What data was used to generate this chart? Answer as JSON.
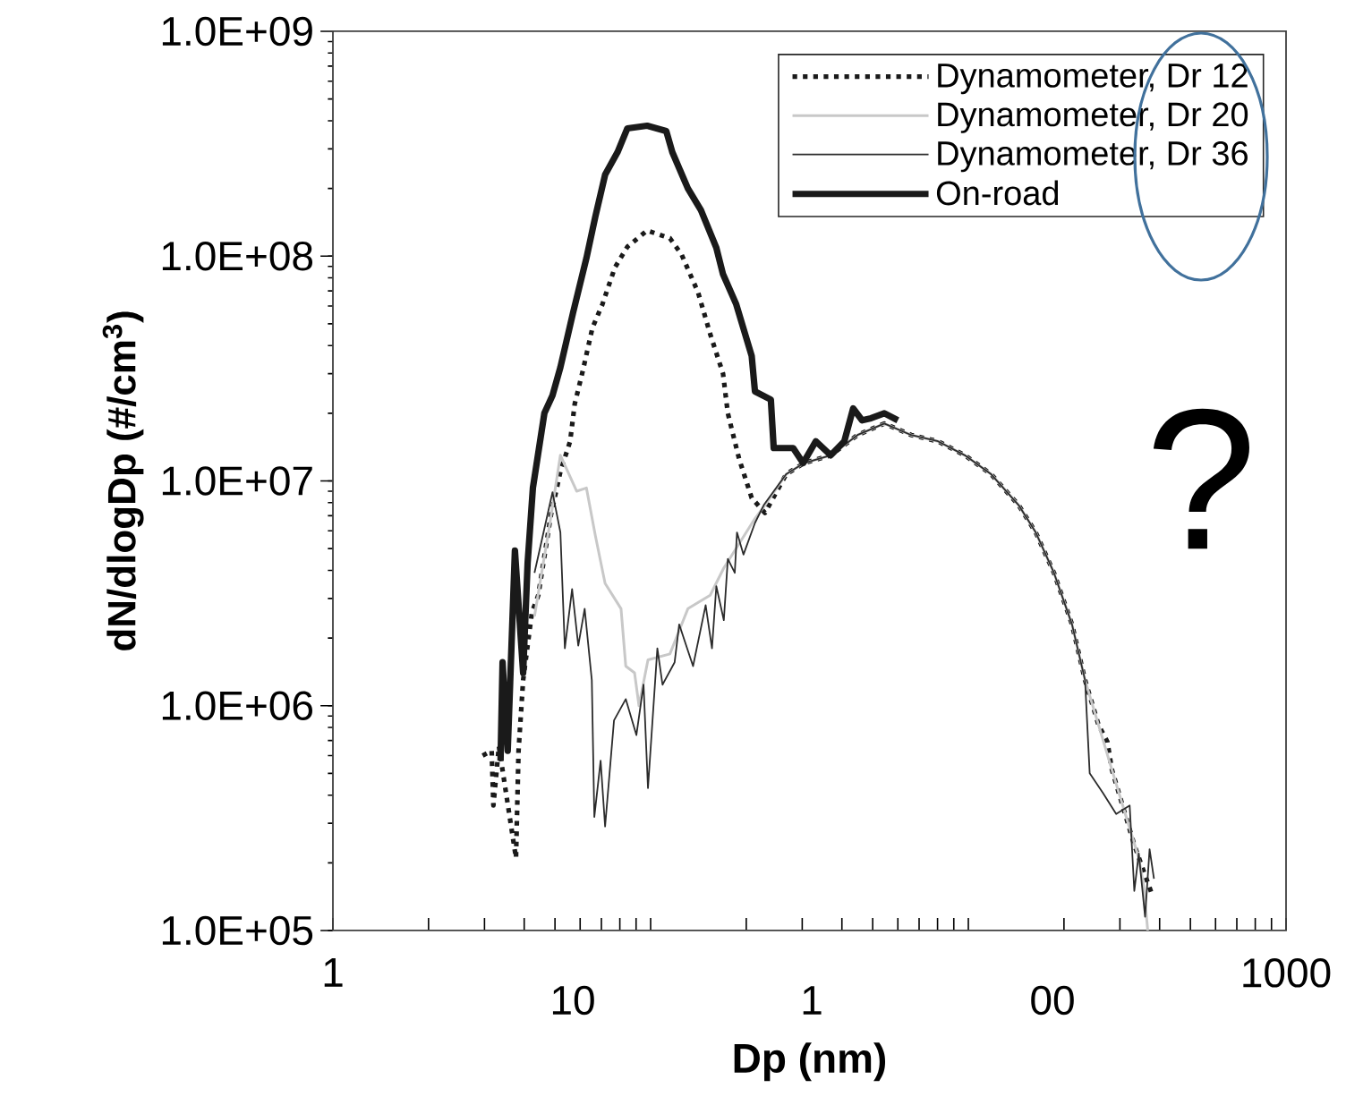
{
  "chart_data": {
    "type": "line",
    "log": "xy",
    "legend": "top right",
    "xlabel": "Dp (nm)",
    "ylabel": "dN/dlogDp (#/cm$^{3}$)",
    "xlim": [
      1,
      1000
    ],
    "ylim": [
      100000,
      1000000000
    ],
    "xticks": [
      {
        "value": 1,
        "label": "1"
      },
      {
        "value": 2,
        "label": null
      },
      {
        "value": 3,
        "label": null
      },
      {
        "value": 4,
        "label": null
      },
      {
        "value": 5,
        "label": null
      },
      {
        "value": 6,
        "label": null
      },
      {
        "value": 7,
        "label": null
      },
      {
        "value": 8,
        "label": null
      },
      {
        "value": 9,
        "label": null
      },
      {
        "value": 10,
        "label": null
      },
      {
        "value": 20,
        "label": null
      },
      {
        "value": 30,
        "label": null
      },
      {
        "value": 40,
        "label": null
      },
      {
        "value": 50,
        "label": null
      },
      {
        "value": 60,
        "label": null
      },
      {
        "value": 70,
        "label": null
      },
      {
        "value": 80,
        "label": null
      },
      {
        "value": 90,
        "label": null
      },
      {
        "value": 100,
        "label": null
      },
      {
        "value": 200,
        "label": null
      },
      {
        "value": 300,
        "label": null
      },
      {
        "value": 400,
        "label": null
      },
      {
        "value": 500,
        "label": null
      },
      {
        "value": 600,
        "label": null
      },
      {
        "value": 700,
        "label": null
      },
      {
        "value": 800,
        "label": null
      },
      {
        "value": 900,
        "label": null
      },
      {
        "value": 1000,
        "label": "1000"
      }
    ],
    "yticks": [
      {
        "value": 100000,
        "label": "1.0E+05"
      },
      {
        "value": 1000000,
        "label": "1.0E+06"
      },
      {
        "value": 10000000,
        "label": "1.0E+07"
      },
      {
        "value": 100000000,
        "label": "1.0E+08"
      },
      {
        "value": 1000000000,
        "label": "1.0E+09"
      }
    ],
    "annotations": [
      "?",
      "10",
      "1",
      "00"
    ],
    "series": [
      {
        "name": "Dynamometer, Dr 12",
        "color": "#1a1a1a",
        "line_style": "dotted",
        "x": [
          2.96,
          3.16,
          3.2,
          3.33,
          3.77,
          3.84,
          3.97,
          4.23,
          4.43,
          4.85,
          5.2,
          5.58,
          5.77,
          6.12,
          6.56,
          7.05,
          7.72,
          8.45,
          9.75,
          11.5,
          12.5,
          14.1,
          15.4,
          16.9,
          17.5,
          19.0,
          20.8,
          22.9,
          26.7,
          30.4,
          36.9,
          44.8,
          54.4,
          66.1,
          80.3,
          97.5,
          118,
          144,
          163,
          186,
          212,
          233,
          257,
          274,
          283,
          333,
          379
        ],
        "values": [
          600000,
          630000,
          360000,
          660000,
          210000,
          630000,
          1300000,
          2600000,
          3100000,
          7000000,
          11000000,
          15000000,
          22000000,
          31000000,
          48000000,
          61000000,
          89000000,
          110000000,
          130000000,
          120000000,
          102000000,
          69000000,
          45000000,
          30000000,
          20000000,
          12500000,
          8400000,
          7200000,
          10700000,
          12000000,
          13000000,
          16000000,
          18000000,
          16000000,
          15000000,
          13000000,
          10700000,
          7800000,
          5900000,
          3900000,
          2300000,
          1300000,
          820000,
          690000,
          520000,
          240000,
          144000
        ]
      },
      {
        "name": "Dynamometer, Dr 20",
        "color": "#c8c8c8",
        "line_style": "solid",
        "x": [
          4.31,
          4.82,
          5.2,
          5.85,
          6.28,
          6.7,
          7.19,
          8.07,
          8.35,
          8.9,
          9.19,
          9.81,
          11.5,
          13.1,
          15.4,
          17.0,
          21.3,
          22.9,
          26.7,
          30.4,
          36.9,
          44.8,
          54.4,
          66.1,
          80.3,
          97.5,
          118,
          144,
          163,
          186,
          212,
          233,
          257,
          283,
          312,
          344,
          356,
          367
        ],
        "values": [
          2500000,
          6500000,
          13000000,
          9000000,
          9300000,
          5700000,
          3500000,
          2700000,
          1500000,
          1400000,
          1000000,
          1600000,
          1700000,
          2700000,
          3100000,
          4100000,
          6800000,
          7800000,
          10700000,
          12000000,
          13000000,
          16000000,
          18000000,
          16000000,
          15000000,
          13000000,
          10700000,
          7800000,
          5900000,
          3900000,
          2300000,
          1300000,
          820000,
          520000,
          330000,
          210000,
          160000,
          100000
        ]
      },
      {
        "name": "Dynamometer, Dr 36",
        "color": "#2b2b2b",
        "line_style": "solid",
        "x": [
          4.31,
          4.91,
          5.2,
          5.37,
          5.66,
          5.92,
          6.2,
          6.53,
          6.65,
          6.96,
          7.19,
          7.67,
          8.35,
          9.02,
          9.5,
          9.81,
          10.5,
          10.9,
          11.9,
          12.3,
          13.6,
          14.9,
          15.6,
          16.1,
          17.0,
          17.5,
          18.4,
          18.7,
          19.6,
          21.3,
          22.7,
          26.7,
          30.4,
          36.9,
          44.8,
          54.4,
          66.1,
          80.3,
          97.5,
          118,
          144,
          163,
          186,
          212,
          233,
          241,
          265,
          292,
          322,
          333,
          344,
          360,
          372,
          384
        ],
        "values": [
          3900000,
          8900000,
          5900000,
          1800000,
          3300000,
          1850000,
          2700000,
          1300000,
          320000,
          570000,
          290000,
          860000,
          1070000,
          740000,
          1240000,
          430000,
          1800000,
          1240000,
          1560000,
          2300000,
          1500000,
          2800000,
          1800000,
          3400000,
          2400000,
          4500000,
          3900000,
          5900000,
          4700000,
          6500000,
          7800000,
          10700000,
          12000000,
          13000000,
          16000000,
          18000000,
          16000000,
          15000000,
          13000000,
          10700000,
          7800000,
          5900000,
          3900000,
          2300000,
          1300000,
          500000,
          410000,
          330000,
          360000,
          150000,
          220000,
          115000,
          230000,
          170000
        ]
      },
      {
        "name": "On-road",
        "color": "#1a1a1a",
        "line_style": "solid",
        "x": [
          3.37,
          3.42,
          3.55,
          3.74,
          3.97,
          4.1,
          4.26,
          4.63,
          4.91,
          5.2,
          5.7,
          6.28,
          6.7,
          7.19,
          7.87,
          8.45,
          9.75,
          11.2,
          11.7,
          13.1,
          14.4,
          16.1,
          16.9,
          18.6,
          20.8,
          21.3,
          23.9,
          24.4,
          28.1,
          30.2,
          33.1,
          36.9,
          40.7,
          43.4,
          46.3,
          49.4,
          54.4,
          60.0
        ],
        "values": [
          570000,
          1560000,
          630000,
          4900000,
          1400000,
          4300000,
          9300000,
          20000000,
          24000000,
          32000000,
          56000000,
          98000000,
          150000000,
          230000000,
          290000000,
          370000000,
          380000000,
          360000000,
          290000000,
          200000000,
          160000000,
          109000000,
          83000000,
          61000000,
          36000000,
          25000000,
          23000000,
          14000000,
          14000000,
          12000000,
          15000000,
          13000000,
          15000000,
          21000000,
          18600000,
          19000000,
          20000000,
          18600000
        ]
      }
    ]
  }
}
